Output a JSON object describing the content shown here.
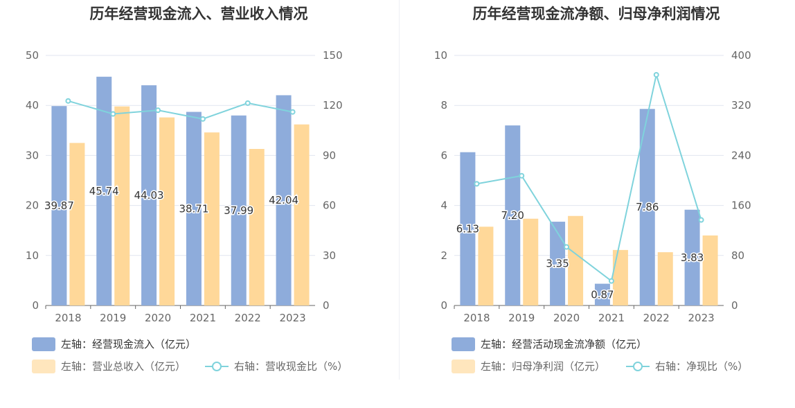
{
  "colors": {
    "bar1": "#8eacdb",
    "bar2": "#ffd899",
    "line": "#7fd3dc",
    "grid": "#e1e5ef",
    "axis": "#666666",
    "legend_bar1": "#8eacdb",
    "legend_bar2": "#ffe6bd"
  },
  "chart_data": [
    {
      "type": "bar+line",
      "title": "历年经营现金流入、营业收入情况",
      "categories": [
        "2018",
        "2019",
        "2020",
        "2021",
        "2022",
        "2023"
      ],
      "left_axis": {
        "min": 0,
        "max": 50,
        "ticks": [
          "0",
          "10",
          "20",
          "30",
          "40",
          "50"
        ]
      },
      "right_axis": {
        "min": 0,
        "max": 150,
        "ticks": [
          "0",
          "30",
          "60",
          "90",
          "120",
          "150"
        ]
      },
      "series": [
        {
          "name": "左轴：经营现金流入（亿元）",
          "kind": "bar",
          "axis": "left",
          "values": [
            39.87,
            45.74,
            44.03,
            38.71,
            37.99,
            42.04
          ],
          "labels": [
            "39.87",
            "45.74",
            "44.03",
            "38.71",
            "37.99",
            "42.04"
          ]
        },
        {
          "name": "左轴：营业总收入（亿元）",
          "kind": "bar",
          "axis": "left",
          "values": [
            32.5,
            39.8,
            37.6,
            34.6,
            31.3,
            36.2
          ]
        },
        {
          "name": "右轴：营收现金比（%）",
          "kind": "line",
          "axis": "right",
          "values": [
            122.7,
            114.9,
            117.1,
            111.9,
            121.4,
            116.1
          ]
        }
      ]
    },
    {
      "type": "bar+line",
      "title": "历年经营现金流净额、归母净利润情况",
      "categories": [
        "2018",
        "2019",
        "2020",
        "2021",
        "2022",
        "2023"
      ],
      "left_axis": {
        "min": 0,
        "max": 10,
        "ticks": [
          "0",
          "2",
          "4",
          "6",
          "8",
          "10"
        ]
      },
      "right_axis": {
        "min": 0,
        "max": 400,
        "ticks": [
          "0",
          "80",
          "160",
          "240",
          "320",
          "400"
        ]
      },
      "series": [
        {
          "name": "左轴：经营活动现金流净额（亿元）",
          "kind": "bar",
          "axis": "left",
          "values": [
            6.13,
            7.2,
            3.35,
            0.87,
            7.86,
            3.83
          ],
          "labels": [
            "6.13",
            "7.20",
            "3.35",
            "0.87",
            "7.86",
            "3.83"
          ]
        },
        {
          "name": "左轴：归母净利润（亿元）",
          "kind": "bar",
          "axis": "left",
          "values": [
            3.15,
            3.47,
            3.58,
            2.22,
            2.13,
            2.8
          ]
        },
        {
          "name": "右轴：净现比（%）",
          "kind": "line",
          "axis": "right",
          "values": [
            194.6,
            207.5,
            93.6,
            39.2,
            369.0,
            136.8
          ]
        }
      ]
    }
  ]
}
